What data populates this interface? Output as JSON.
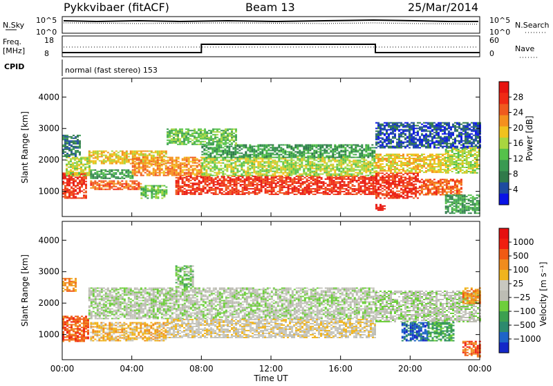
{
  "header": {
    "radar": "Pykkvibaer (fitACF)",
    "beam": "Beam 13",
    "date": "25/Mar/2014"
  },
  "panels": {
    "nsky_label": "N.Sky",
    "nsky_ticks": [
      "10^5",
      "10^0"
    ],
    "nsearch_label": "N.Search",
    "nsearch_ticks": [
      "10^5",
      "10^0"
    ],
    "freq_label": "Freq.",
    "freq_unit": "[MHz]",
    "freq_ticks": [
      "18",
      "8"
    ],
    "nave_label": "Nave",
    "nave_ticks": [
      "60",
      "0"
    ],
    "cpid_label": "CPID",
    "cpid_text": "normal (fast stereo) 153"
  },
  "colors": {
    "power_scale": [
      "#0a14e6",
      "#1e4ba0",
      "#2f7a4a",
      "#3a9a52",
      "#55c24a",
      "#a8d640",
      "#f0c21e",
      "#f5901e",
      "#f05a1e",
      "#f02a14",
      "#e61410"
    ],
    "velocity_scale": [
      "#1428c8",
      "#1e64c8",
      "#2d8a6e",
      "#3ca050",
      "#6ecf3c",
      "#bdbdb4",
      "#c8c8c0",
      "#f0b41e",
      "#f08c1e",
      "#f05a14",
      "#f01e10",
      "#e61010"
    ]
  },
  "chart_data": [
    {
      "type": "heatmap",
      "name": "power",
      "ylabel": "Slant Range [km]",
      "xlabel": "Time UT",
      "ylim": [
        200,
        4600
      ],
      "xlim": [
        0,
        24
      ],
      "yticks": [
        "1000",
        "2000",
        "3000",
        "4000"
      ],
      "colorbar_label": "Power [dB]",
      "colorbar_ticks": [
        "28",
        "24",
        "20",
        "16",
        "12",
        "8",
        "4"
      ],
      "bands": [
        {
          "t0": 0.0,
          "t1": 1.4,
          "r0": 800,
          "r1": 1600,
          "level": 9
        },
        {
          "t0": 0.2,
          "t1": 1.6,
          "r0": 1500,
          "r1": 2100,
          "level": 5
        },
        {
          "t0": 0.0,
          "t1": 1.0,
          "r0": 2100,
          "r1": 2800,
          "level": 2
        },
        {
          "t0": 1.6,
          "t1": 4.5,
          "r0": 1050,
          "r1": 1350,
          "level": 8
        },
        {
          "t0": 4.5,
          "t1": 6.0,
          "r0": 800,
          "r1": 1200,
          "level": 4
        },
        {
          "t0": 1.6,
          "t1": 4.0,
          "r0": 1400,
          "r1": 1700,
          "level": 3
        },
        {
          "t0": 1.5,
          "t1": 6.0,
          "r0": 1900,
          "r1": 2300,
          "level": 6
        },
        {
          "t0": 4.0,
          "t1": 8.0,
          "r0": 1500,
          "r1": 2100,
          "level": 7
        },
        {
          "t0": 6.5,
          "t1": 18.0,
          "r0": 900,
          "r1": 1500,
          "level": 9
        },
        {
          "t0": 8.0,
          "t1": 18.0,
          "r0": 1500,
          "r1": 2100,
          "level": 5
        },
        {
          "t0": 8.0,
          "t1": 18.0,
          "r0": 2100,
          "r1": 2500,
          "level": 3
        },
        {
          "t0": 6.0,
          "t1": 10.0,
          "r0": 2500,
          "r1": 3000,
          "level": 4
        },
        {
          "t0": 18.0,
          "t1": 20.5,
          "r0": 800,
          "r1": 1600,
          "level": 9
        },
        {
          "t0": 18.0,
          "t1": 18.5,
          "r0": 400,
          "r1": 600,
          "level": 10
        },
        {
          "t0": 18.0,
          "t1": 22.0,
          "r0": 1600,
          "r1": 2200,
          "level": 6
        },
        {
          "t0": 20.5,
          "t1": 23.0,
          "r0": 900,
          "r1": 1400,
          "level": 8
        },
        {
          "t0": 22.0,
          "t1": 24.0,
          "r0": 1600,
          "r1": 2400,
          "level": 5
        },
        {
          "t0": 22.0,
          "t1": 24.0,
          "r0": 300,
          "r1": 900,
          "level": 3
        },
        {
          "t0": 18.0,
          "t1": 24.0,
          "r0": 2400,
          "r1": 3200,
          "level": 1
        }
      ]
    },
    {
      "type": "heatmap",
      "name": "velocity",
      "ylabel": "Slant Range [km]",
      "xlabel": "Time UT",
      "ylim": [
        200,
        4600
      ],
      "xlim": [
        0,
        24
      ],
      "yticks": [
        "1000",
        "2000",
        "3000",
        "4000"
      ],
      "xticks": [
        "00:00",
        "04:00",
        "08:00",
        "12:00",
        "16:00",
        "20:00",
        "00:00"
      ],
      "colorbar_label": "Velocity [m s⁻¹]",
      "colorbar_ticks": [
        "1000",
        "500",
        "100",
        "25",
        "−25",
        "−100",
        "−500",
        "−1000"
      ],
      "bands": [
        {
          "t0": 0.0,
          "t1": 1.5,
          "r0": 800,
          "r1": 1600,
          "level": 9
        },
        {
          "t0": 0.0,
          "t1": 0.8,
          "r0": 2400,
          "r1": 2800,
          "level": 8
        },
        {
          "t0": 1.6,
          "t1": 6.0,
          "r0": 800,
          "r1": 1400,
          "level": 7
        },
        {
          "t0": 1.5,
          "t1": 18.0,
          "r0": 1500,
          "r1": 2500,
          "level": 5
        },
        {
          "t0": 6.0,
          "t1": 18.0,
          "r0": 900,
          "r1": 1500,
          "level": 6
        },
        {
          "t0": 6.5,
          "t1": 7.5,
          "r0": 2500,
          "r1": 3200,
          "level": 4
        },
        {
          "t0": 18.0,
          "t1": 24.0,
          "r0": 1400,
          "r1": 2400,
          "level": 5
        },
        {
          "t0": 19.5,
          "t1": 21.0,
          "r0": 800,
          "r1": 1400,
          "level": 1
        },
        {
          "t0": 21.0,
          "t1": 22.5,
          "r0": 800,
          "r1": 1400,
          "level": 3
        },
        {
          "t0": 23.0,
          "t1": 24.0,
          "r0": 2000,
          "r1": 2500,
          "level": 8
        },
        {
          "t0": 23.0,
          "t1": 24.0,
          "r0": 300,
          "r1": 800,
          "level": 9
        }
      ]
    },
    {
      "type": "line",
      "name": "freq",
      "x": [
        0,
        8,
        8,
        18,
        18,
        24
      ],
      "y": [
        10,
        10,
        14,
        14,
        10,
        10
      ],
      "ylim": [
        8,
        18
      ]
    }
  ]
}
